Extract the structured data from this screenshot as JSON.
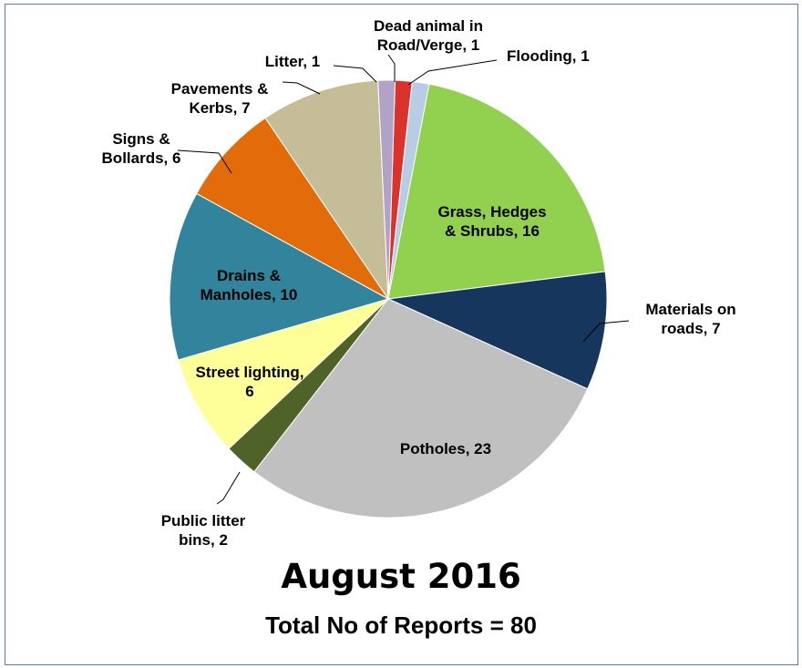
{
  "chart_data": {
    "type": "pie",
    "title": "August 2016",
    "subtitle": "Total No of Reports = 80",
    "slices": [
      {
        "name": "Dead animal in Road/Verge",
        "value": 1,
        "label": [
          "Dead animal in",
          "Road/Verge, 1"
        ],
        "color": "#d9332b"
      },
      {
        "name": "Flooding",
        "value": 1,
        "label": [
          "Flooding, 1"
        ],
        "color": "#b8cce4"
      },
      {
        "name": "Grass, Hedges & Shrubs",
        "value": 16,
        "label": [
          "Grass, Hedges",
          "& Shrubs, 16"
        ],
        "color": "#92d050"
      },
      {
        "name": "Materials on roads",
        "value": 7,
        "label": [
          "Materials on",
          "roads, 7"
        ],
        "color": "#17365d"
      },
      {
        "name": "Potholes",
        "value": 23,
        "label": [
          "Potholes, 23"
        ],
        "color": "#c0c0c0"
      },
      {
        "name": "Public litter bins",
        "value": 2,
        "label": [
          "Public litter",
          "bins, 2"
        ],
        "color": "#4f6228"
      },
      {
        "name": "Street lighting",
        "value": 6,
        "label": [
          "Street lighting,",
          "6"
        ],
        "color": "#ffff99"
      },
      {
        "name": "Drains & Manholes",
        "value": 10,
        "label": [
          "Drains &",
          "Manholes, 10"
        ],
        "color": "#31849b"
      },
      {
        "name": "Signs & Bollards",
        "value": 6,
        "label": [
          "Signs &",
          "Bollards, 6"
        ],
        "color": "#e36c0a"
      },
      {
        "name": "Pavements & Kerbs",
        "value": 7,
        "label": [
          "Pavements &",
          "Kerbs, 7"
        ],
        "color": "#c4bd97"
      },
      {
        "name": "Litter",
        "value": 1,
        "label": [
          "Litter, 1"
        ],
        "color": "#b3a2c7"
      }
    ]
  }
}
